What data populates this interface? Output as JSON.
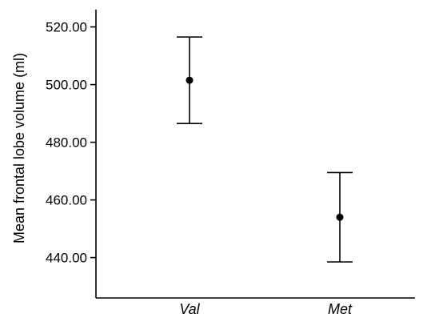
{
  "chart_data": {
    "type": "scatter",
    "title": "",
    "xlabel": "",
    "ylabel": "Mean frontal lobe volume (ml)",
    "categories": [
      "Val",
      "Met"
    ],
    "series": [
      {
        "values": [
          501.5,
          454.0
        ],
        "error_low": [
          486.5,
          438.5
        ],
        "error_high": [
          516.5,
          469.5
        ]
      }
    ],
    "y_ticks": [
      "440.00",
      "460.00",
      "480.00",
      "500.00",
      "520.00"
    ],
    "ylim": [
      426,
      526
    ],
    "grid": false,
    "legend": "none",
    "colors": {
      "marks": "#000000",
      "background": "#ffffff"
    }
  }
}
